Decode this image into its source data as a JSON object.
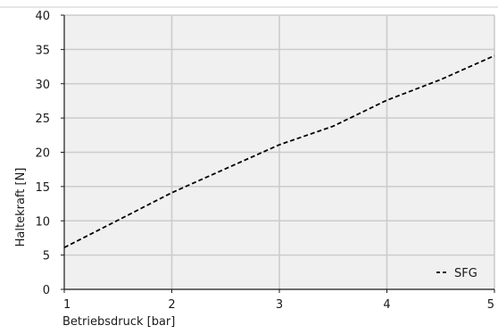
{
  "chart_data": {
    "type": "line",
    "title": "",
    "xlabel": "Betriebsdruck [bar]",
    "ylabel": "Haltekraft [N]",
    "xlim": [
      1,
      5
    ],
    "ylim": [
      0,
      40
    ],
    "xticks": [
      1,
      2,
      3,
      4,
      5
    ],
    "yticks": [
      0,
      5,
      10,
      15,
      20,
      25,
      30,
      35,
      40
    ],
    "grid": true,
    "legend_position": "bottom-right",
    "background_color": "#f0f0f0",
    "grid_color": "#cccccc",
    "series": [
      {
        "name": "SFG",
        "line_style": "dashed",
        "color": "#000000",
        "x": [
          1,
          1.5,
          2,
          2.5,
          3,
          3.5,
          4,
          4.5,
          5
        ],
        "y": [
          6.1,
          10.1,
          14.1,
          17.6,
          21.1,
          23.8,
          27.6,
          30.6,
          34.1
        ]
      }
    ]
  }
}
